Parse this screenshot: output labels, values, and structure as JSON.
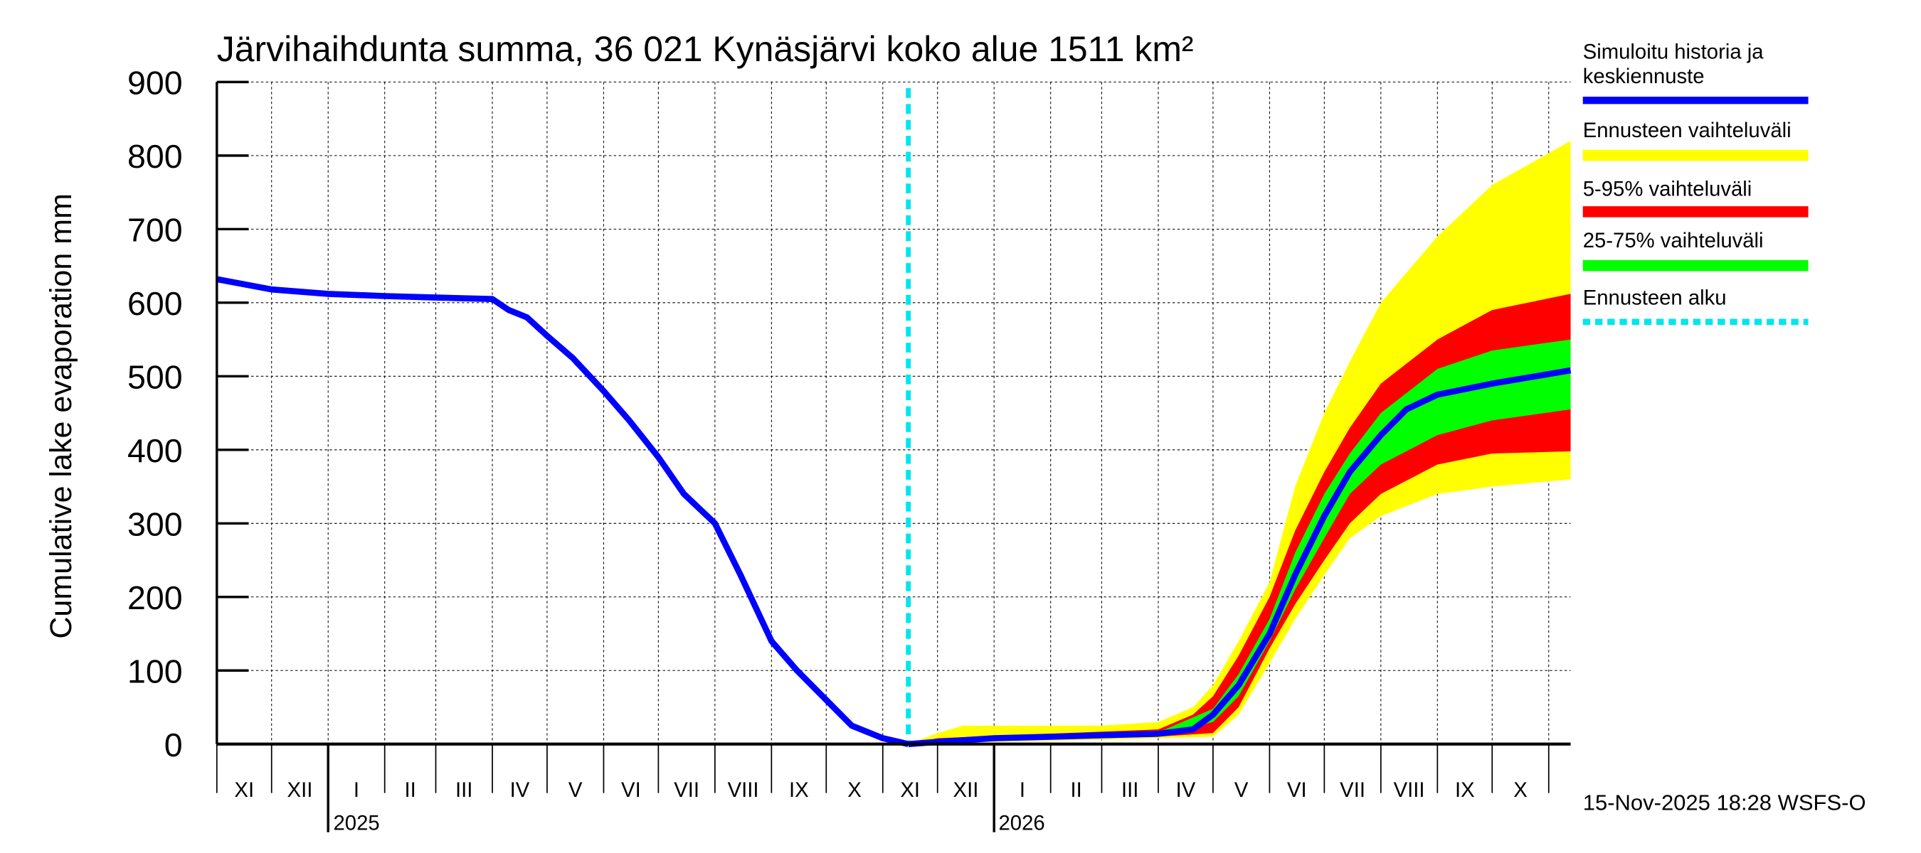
{
  "chart_data": {
    "type": "area",
    "title": "Järvihaihdunta summa, 36 021 Kynäsjärvi koko alue 1511 km²",
    "ylabel": "Cumulative lake evaporation   mm",
    "xlabel": "",
    "ylim": [
      0,
      900
    ],
    "xlim": [
      "2024-11-01",
      "2026-11-13"
    ],
    "grid": true,
    "legend_placement": "right",
    "yticks": [
      "0",
      "100",
      "200",
      "300",
      "400",
      "500",
      "600",
      "700",
      "800",
      "900"
    ],
    "month_labels": [
      "XI",
      "XII",
      "I",
      "II",
      "III",
      "IV",
      "V",
      "VI",
      "VII",
      "VIII",
      "IX",
      "X",
      "XI",
      "XII",
      "I",
      "II",
      "III",
      "IV",
      "V",
      "VI",
      "VII",
      "VIII",
      "IX",
      "X"
    ],
    "year_labels": [
      "2025",
      "2026"
    ],
    "forecast_start": "2025-11-15",
    "footer": "15-Nov-2025 18:28 WSFS-O",
    "colors": {
      "history": "#0000ff",
      "yellow": "#ffff00",
      "red": "#ff0000",
      "green": "#00ff00",
      "forecast_start": "#00e5ee"
    },
    "legend": [
      {
        "label": "Simuloitu historia ja keskiennuste",
        "color": "#0000ff",
        "style": "line"
      },
      {
        "label": "Ennusteen vaihteluväli",
        "color": "#ffff00",
        "style": "band"
      },
      {
        "label": "5-95% vaihteluväli",
        "color": "#ff0000",
        "style": "band"
      },
      {
        "label": "25-75% vaihteluväli",
        "color": "#00ff00",
        "style": "band"
      },
      {
        "label": "Ennusteen alku",
        "color": "#00e5ee",
        "style": "dotted"
      }
    ],
    "series": {
      "history": {
        "x": [
          "2024-11-01",
          "2024-12-01",
          "2025-01-01",
          "2025-02-01",
          "2025-03-01",
          "2025-04-01",
          "2025-04-10",
          "2025-04-20",
          "2025-05-01",
          "2025-05-15",
          "2025-06-01",
          "2025-06-15",
          "2025-07-01",
          "2025-07-15",
          "2025-08-01",
          "2025-08-15",
          "2025-09-01",
          "2025-09-15",
          "2025-10-01",
          "2025-10-15",
          "2025-11-01",
          "2025-11-15"
        ],
        "y": [
          632,
          618,
          612,
          609,
          607,
          605,
          590,
          580,
          555,
          525,
          480,
          440,
          390,
          340,
          300,
          230,
          140,
          100,
          60,
          25,
          8,
          0
        ]
      },
      "median": {
        "x": [
          "2025-11-15",
          "2025-12-01",
          "2026-01-01",
          "2026-02-01",
          "2026-03-01",
          "2026-04-01",
          "2026-04-20",
          "2026-05-01",
          "2026-05-15",
          "2026-06-01",
          "2026-06-15",
          "2026-07-01",
          "2026-07-15",
          "2026-08-01",
          "2026-08-15",
          "2026-09-01",
          "2026-10-01",
          "2026-11-13"
        ],
        "y": [
          0,
          3,
          8,
          10,
          12,
          14,
          20,
          40,
          80,
          150,
          230,
          310,
          370,
          420,
          455,
          475,
          490,
          508
        ]
      },
      "range_upper": {
        "x": [
          "2025-11-15",
          "2025-12-01",
          "2025-12-15",
          "2026-03-01",
          "2026-04-01",
          "2026-04-20",
          "2026-05-01",
          "2026-05-15",
          "2026-06-01",
          "2026-06-15",
          "2026-07-01",
          "2026-07-15",
          "2026-08-01",
          "2026-09-01",
          "2026-10-01",
          "2026-11-13"
        ],
        "y": [
          0,
          15,
          25,
          25,
          30,
          50,
          80,
          140,
          220,
          350,
          450,
          520,
          600,
          690,
          760,
          820
        ]
      },
      "range_lower": {
        "x": [
          "2025-11-15",
          "2026-04-01",
          "2026-05-01",
          "2026-05-15",
          "2026-06-01",
          "2026-06-15",
          "2026-07-01",
          "2026-07-15",
          "2026-08-01",
          "2026-09-01",
          "2026-10-01",
          "2026-11-13"
        ],
        "y": [
          0,
          8,
          10,
          40,
          110,
          170,
          230,
          280,
          310,
          340,
          350,
          360
        ]
      },
      "p95": {
        "x": [
          "2025-11-15",
          "2025-12-01",
          "2026-04-01",
          "2026-04-20",
          "2026-05-01",
          "2026-05-15",
          "2026-06-01",
          "2026-06-15",
          "2026-07-01",
          "2026-07-15",
          "2026-08-01",
          "2026-09-01",
          "2026-10-01",
          "2026-11-13"
        ],
        "y": [
          0,
          8,
          20,
          40,
          65,
          120,
          200,
          290,
          370,
          430,
          490,
          550,
          590,
          612
        ]
      },
      "p5": {
        "x": [
          "2025-11-15",
          "2025-12-01",
          "2026-04-01",
          "2026-05-01",
          "2026-05-15",
          "2026-06-01",
          "2026-06-15",
          "2026-07-01",
          "2026-07-15",
          "2026-08-01",
          "2026-09-01",
          "2026-10-01",
          "2026-11-13"
        ],
        "y": [
          0,
          2,
          10,
          15,
          50,
          130,
          190,
          250,
          300,
          340,
          380,
          395,
          398
        ]
      },
      "p75": {
        "x": [
          "2025-11-15",
          "2026-04-01",
          "2026-05-01",
          "2026-05-15",
          "2026-06-01",
          "2026-06-15",
          "2026-07-01",
          "2026-07-15",
          "2026-08-01",
          "2026-09-01",
          "2026-10-01",
          "2026-11-13"
        ],
        "y": [
          0,
          16,
          48,
          95,
          170,
          260,
          340,
          395,
          450,
          510,
          535,
          550
        ]
      },
      "p25": {
        "x": [
          "2025-11-15",
          "2026-04-01",
          "2026-05-01",
          "2026-05-15",
          "2026-06-01",
          "2026-06-15",
          "2026-07-01",
          "2026-07-15",
          "2026-08-01",
          "2026-09-01",
          "2026-10-01",
          "2026-11-13"
        ],
        "y": [
          0,
          12,
          30,
          65,
          140,
          210,
          280,
          340,
          380,
          420,
          440,
          455
        ]
      }
    }
  }
}
